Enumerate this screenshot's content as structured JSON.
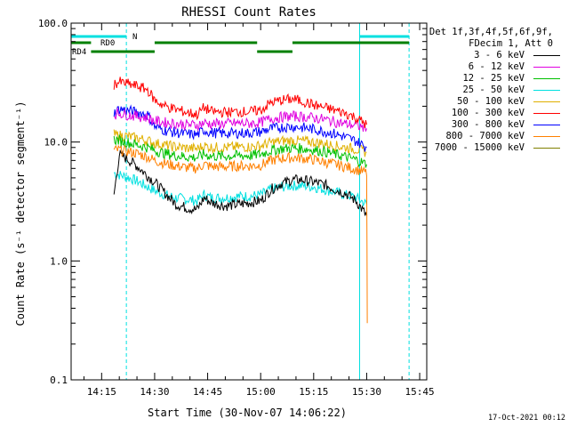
{
  "chart_data": {
    "type": "line",
    "title": "RHESSI Count Rates",
    "xlabel": "Start Time (30-Nov-07 14:06:22)",
    "ylabel": "Count Rate (s⁻¹ detector segment⁻¹)",
    "yscale": "log",
    "ylim": [
      0.1,
      100
    ],
    "xlim": [
      "14:06:22",
      "15:47:00"
    ],
    "x_ticks": [
      "14:15",
      "14:30",
      "14:45",
      "15:00",
      "15:15",
      "15:30",
      "15:45"
    ],
    "y_ticks": [
      "0.1",
      "1.0",
      "10.0",
      "100.0"
    ],
    "grid": false,
    "legend_position": "outside-right",
    "legend_header": [
      "Det 1f,3f,4f,5f,6f,9f,",
      "FDecim 1, Att 0"
    ],
    "series": [
      {
        "name": "3 - 6 keV",
        "color": "#000000",
        "x": [
          "14:18:30",
          "14:20",
          "14:22",
          "14:25",
          "14:28",
          "14:30",
          "14:33",
          "14:36",
          "14:39",
          "14:42",
          "14:44",
          "14:46",
          "14:50",
          "14:54",
          "14:57",
          "15:00",
          "15:03",
          "15:06",
          "15:09",
          "15:12",
          "15:15",
          "15:18",
          "15:21",
          "15:24",
          "15:27",
          "15:30"
        ],
        "y": [
          3.6,
          7.8,
          7.3,
          6.3,
          5.2,
          4.6,
          3.7,
          3.0,
          2.8,
          2.7,
          3.4,
          3.1,
          2.9,
          3.0,
          3.1,
          3.2,
          4.0,
          4.5,
          4.8,
          4.8,
          4.6,
          4.4,
          4.0,
          3.7,
          3.2,
          2.4
        ]
      },
      {
        "name": "6 - 12 keV",
        "color": "#e000e0",
        "x": [
          "14:18:30",
          "14:20",
          "14:22",
          "14:25",
          "14:28",
          "14:30",
          "14:33",
          "14:36",
          "14:39",
          "14:42",
          "14:44",
          "14:46",
          "14:50",
          "14:54",
          "14:57",
          "15:00",
          "15:03",
          "15:06",
          "15:09",
          "15:12",
          "15:15",
          "15:18",
          "15:21",
          "15:24",
          "15:27",
          "15:30"
        ],
        "y": [
          17.0,
          17.5,
          17.0,
          16.5,
          16.0,
          15.0,
          14.6,
          14.3,
          14.0,
          13.9,
          14.5,
          14.2,
          14.3,
          14.4,
          14.3,
          14.6,
          15.8,
          16.2,
          16.5,
          16.3,
          16.0,
          15.5,
          14.8,
          14.2,
          13.8,
          13.0
        ]
      },
      {
        "name": "12 - 25 keV",
        "color": "#00c000",
        "x": [
          "14:18:30",
          "14:20",
          "14:22",
          "14:25",
          "14:28",
          "14:30",
          "14:33",
          "14:36",
          "14:39",
          "14:42",
          "14:44",
          "14:46",
          "14:50",
          "14:54",
          "14:57",
          "15:00",
          "15:03",
          "15:06",
          "15:09",
          "15:12",
          "15:15",
          "15:18",
          "15:21",
          "15:24",
          "15:27",
          "15:30"
        ],
        "y": [
          10.5,
          10.3,
          10.0,
          9.5,
          9.0,
          8.5,
          8.0,
          7.7,
          7.5,
          7.4,
          7.9,
          7.6,
          7.6,
          7.7,
          7.7,
          7.9,
          8.5,
          8.8,
          8.9,
          8.8,
          8.6,
          8.3,
          7.9,
          7.5,
          7.1,
          6.5
        ]
      },
      {
        "name": "25 - 50 keV",
        "color": "#00e0e0",
        "x": [
          "14:18:30",
          "14:20",
          "14:22",
          "14:25",
          "14:28",
          "14:30",
          "14:33",
          "14:36",
          "14:39",
          "14:42",
          "14:44",
          "14:46",
          "14:50",
          "14:54",
          "14:57",
          "15:00",
          "15:03",
          "15:06",
          "15:09",
          "15:12",
          "15:15",
          "15:18",
          "15:21",
          "15:24",
          "15:27",
          "15:30"
        ],
        "y": [
          5.5,
          5.3,
          5.1,
          4.7,
          4.2,
          3.9,
          3.6,
          3.4,
          3.3,
          3.2,
          3.6,
          3.4,
          3.4,
          3.5,
          3.5,
          3.6,
          4.0,
          4.2,
          4.3,
          4.3,
          4.2,
          4.0,
          3.8,
          3.6,
          3.4,
          3.0
        ]
      },
      {
        "name": "50 - 100 keV",
        "color": "#e0b000",
        "x": [
          "14:18:30",
          "14:20",
          "14:22",
          "14:25",
          "14:28",
          "14:30",
          "14:33",
          "14:36",
          "14:39",
          "14:42",
          "14:44",
          "14:46",
          "14:50",
          "14:54",
          "14:57",
          "15:00",
          "15:03",
          "15:06",
          "15:09",
          "15:12",
          "15:15",
          "15:18",
          "15:21",
          "15:24",
          "15:27",
          "15:30"
        ],
        "y": [
          11.5,
          11.4,
          11.2,
          10.8,
          10.3,
          9.8,
          9.4,
          9.1,
          8.9,
          8.8,
          9.3,
          9.0,
          9.0,
          9.1,
          9.1,
          9.3,
          9.9,
          10.2,
          10.3,
          10.2,
          10.0,
          9.7,
          9.3,
          9.0,
          8.7,
          8.2
        ]
      },
      {
        "name": "100 - 300 keV",
        "color": "#ff0000",
        "x": [
          "14:18:30",
          "14:20",
          "14:22",
          "14:25",
          "14:28",
          "14:30",
          "14:33",
          "14:36",
          "14:39",
          "14:42",
          "14:44",
          "14:46",
          "14:50",
          "14:54",
          "14:57",
          "15:00",
          "15:03",
          "15:06",
          "15:09",
          "15:12",
          "15:15",
          "15:18",
          "15:21",
          "15:24",
          "15:27",
          "15:30"
        ],
        "y": [
          30.5,
          32.0,
          31.0,
          29.5,
          27.5,
          22.5,
          20.0,
          18.8,
          17.8,
          17.0,
          19.5,
          18.0,
          17.8,
          18.0,
          18.0,
          18.5,
          21.5,
          22.5,
          23.0,
          22.0,
          20.5,
          19.5,
          18.5,
          17.5,
          16.0,
          14.0
        ]
      },
      {
        "name": "300 - 800 keV",
        "color": "#0000ff",
        "x": [
          "14:18:30",
          "14:20",
          "14:22",
          "14:25",
          "14:28",
          "14:30",
          "14:33",
          "14:36",
          "14:39",
          "14:42",
          "14:44",
          "14:46",
          "14:50",
          "14:54",
          "14:57",
          "15:00",
          "15:03",
          "15:06",
          "15:09",
          "15:12",
          "15:15",
          "15:18",
          "15:21",
          "15:24",
          "15:27",
          "15:30"
        ],
        "y": [
          17.5,
          19.0,
          18.5,
          17.8,
          17.0,
          13.5,
          12.5,
          12.0,
          11.7,
          11.5,
          12.6,
          12.0,
          11.8,
          11.9,
          11.9,
          12.2,
          13.0,
          13.3,
          13.5,
          13.2,
          12.8,
          12.3,
          11.7,
          11.0,
          10.2,
          9.0
        ]
      },
      {
        "name": "800 - 7000 keV",
        "color": "#ff8000",
        "x": [
          "14:18:30",
          "14:20",
          "14:22",
          "14:25",
          "14:28",
          "14:30",
          "14:33",
          "14:36",
          "14:39",
          "14:42",
          "14:44",
          "14:46",
          "14:50",
          "14:54",
          "14:57",
          "15:00",
          "15:03",
          "15:06",
          "15:09",
          "15:12",
          "15:15",
          "15:18",
          "15:21",
          "15:24",
          "15:27",
          "15:30",
          "15:30:10"
        ],
        "y": [
          8.5,
          8.6,
          8.4,
          8.0,
          7.5,
          7.0,
          6.6,
          6.3,
          6.1,
          6.0,
          6.5,
          6.2,
          6.2,
          6.3,
          6.3,
          6.4,
          7.0,
          7.3,
          7.4,
          7.3,
          7.1,
          6.8,
          6.5,
          6.2,
          5.9,
          5.5,
          0.3
        ]
      },
      {
        "name": "7000 - 15000 keV",
        "color": "#808000",
        "x": [],
        "y": []
      }
    ],
    "annotations": {
      "attenuator_bars": [
        {
          "label": "N",
          "color": "#00e0e0",
          "segments": [
            [
              "14:06:22",
              "14:22"
            ],
            [
              "15:28",
              "15:42"
            ]
          ]
        },
        {
          "label": "RD0",
          "color": "#008000",
          "segments": [
            [
              "14:06:22",
              "14:12"
            ],
            [
              "14:30",
              "14:59"
            ],
            [
              "15:09",
              "15:42"
            ]
          ]
        },
        {
          "label": "RD4",
          "color": "#008000",
          "segments": [
            [
              "14:12",
              "14:30"
            ],
            [
              "14:59",
              "15:09"
            ]
          ]
        }
      ],
      "vlines_solid": [
        "14:06:22",
        "15:28"
      ],
      "vlines_dashed": [
        "14:22",
        "15:42"
      ],
      "vline_color": "#00e0e0"
    },
    "footer_stamp": "17-Oct-2021 00:12"
  }
}
